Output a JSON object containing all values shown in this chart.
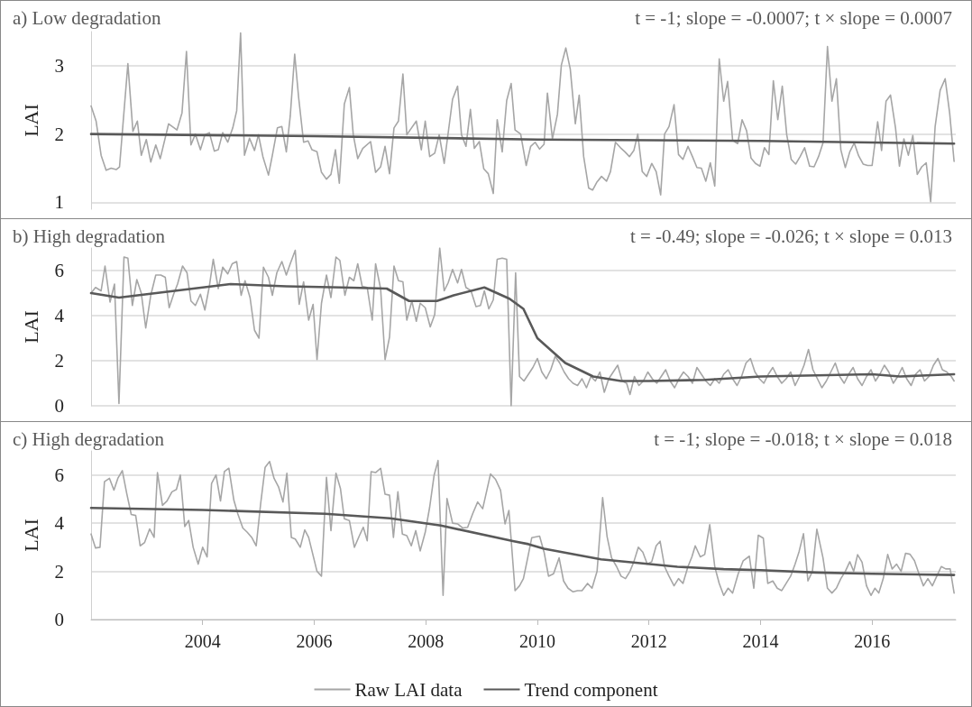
{
  "chart_data": [
    {
      "type": "line",
      "title": "a) Low degradation",
      "annotations": [
        "t = -1; slope = -0.0007; t × slope = 0.0007"
      ],
      "ylabel": "LAI",
      "xlim": [
        2002,
        2017.5
      ],
      "xticks": [
        2004,
        2006,
        2008,
        2010,
        2012,
        2014,
        2016
      ],
      "ylim": [
        0.9,
        3.5
      ],
      "yticks": [
        1,
        2,
        3
      ],
      "grid": "y",
      "legend": false,
      "tick_labels": "y",
      "marker": "none",
      "line_style": "solid",
      "series": [
        {
          "color": "#a6a6a6",
          "x": [
            2002.0,
            2002.09,
            2002.18,
            2002.27,
            2002.36,
            2002.45,
            2002.51,
            2002.66,
            2002.75,
            2002.83,
            2002.9,
            2002.99,
            2003.07,
            2003.16,
            2003.24,
            2003.39,
            2003.54,
            2003.63,
            2003.71,
            2003.79,
            2003.87,
            2003.96,
            2004.04,
            2004.12,
            2004.21,
            2004.28,
            2004.36,
            2004.45,
            2004.54,
            2004.61,
            2004.68,
            2004.75,
            2004.84,
            2004.93,
            2005.0,
            2005.08,
            2005.18,
            2005.25,
            2005.34,
            2005.42,
            2005.5,
            2005.57,
            2005.65,
            2005.72,
            2005.81,
            2005.89,
            2005.96,
            2006.05,
            2006.13,
            2006.22,
            2006.3,
            2006.38,
            2006.45,
            2006.54,
            2006.63,
            2006.7,
            2006.78,
            2006.87,
            2007.01,
            2007.1,
            2007.19,
            2007.27,
            2007.35,
            2007.43,
            2007.51,
            2007.59,
            2007.66,
            2007.83,
            2007.92,
            2007.99,
            2008.07,
            2008.16,
            2008.24,
            2008.33,
            2008.48,
            2008.57,
            2008.64,
            2008.72,
            2008.8,
            2008.87,
            2008.96,
            2009.04,
            2009.12,
            2009.21,
            2009.28,
            2009.37,
            2009.45,
            2009.53,
            2009.6,
            2009.7,
            2009.8,
            2009.88,
            2009.96,
            2010.04,
            2010.12,
            2010.18,
            2010.27,
            2010.36,
            2010.43,
            2010.51,
            2010.59,
            2010.68,
            2010.75,
            2010.83,
            2010.92,
            2010.99,
            2011.07,
            2011.15,
            2011.24,
            2011.31,
            2011.4,
            2011.49,
            2011.57,
            2011.65,
            2011.73,
            2011.8,
            2011.88,
            2011.96,
            2012.05,
            2012.13,
            2012.21,
            2012.28,
            2012.36,
            2012.45,
            2012.53,
            2012.61,
            2012.7,
            2012.78,
            2012.86,
            2012.94,
            2013.02,
            2013.1,
            2013.18,
            2013.26,
            2013.34,
            2013.41,
            2013.5,
            2013.59,
            2013.67,
            2013.75,
            2013.83,
            2013.91,
            2013.99,
            2014.07,
            2014.15,
            2014.23,
            2014.31,
            2014.39,
            2014.47,
            2014.55,
            2014.63,
            2014.71,
            2014.79,
            2014.88,
            2014.96,
            2015.04,
            2015.12,
            2015.2,
            2015.28,
            2015.36,
            2015.44,
            2015.52,
            2015.6,
            2015.68,
            2015.76,
            2015.84,
            2015.92,
            2016.0,
            2016.1,
            2016.17,
            2016.25,
            2016.33,
            2016.42,
            2016.49,
            2016.57,
            2016.65,
            2016.73,
            2016.81,
            2016.89,
            2016.97,
            2017.05,
            2017.13,
            2017.22,
            2017.31,
            2017.39,
            2017.47
          ],
          "values": [
            2.41,
            2.19,
            1.69,
            1.47,
            1.5,
            1.48,
            1.52,
            3.03,
            2.04,
            2.19,
            1.69,
            1.92,
            1.59,
            1.84,
            1.64,
            2.15,
            2.06,
            2.31,
            3.21,
            1.84,
            2.0,
            1.77,
            1.99,
            2.02,
            1.75,
            1.77,
            2.02,
            1.88,
            2.09,
            2.34,
            3.48,
            1.69,
            1.94,
            1.76,
            1.99,
            1.67,
            1.4,
            1.69,
            2.09,
            2.11,
            1.74,
            2.26,
            3.17,
            2.54,
            1.88,
            1.9,
            1.77,
            1.74,
            1.44,
            1.34,
            1.41,
            1.77,
            1.28,
            2.44,
            2.68,
            1.99,
            1.64,
            1.79,
            1.89,
            1.44,
            1.52,
            1.82,
            1.42,
            2.09,
            2.19,
            2.88,
            1.99,
            2.19,
            1.77,
            2.19,
            1.67,
            1.72,
            1.99,
            1.57,
            2.51,
            2.7,
            1.99,
            1.82,
            2.36,
            1.79,
            1.89,
            1.49,
            1.42,
            1.13,
            2.21,
            1.74,
            2.49,
            2.74,
            2.06,
            2.0,
            1.54,
            1.82,
            1.88,
            1.78,
            1.85,
            2.6,
            1.93,
            2.29,
            3.01,
            3.26,
            2.95,
            2.15,
            2.57,
            1.67,
            1.21,
            1.18,
            1.3,
            1.38,
            1.31,
            1.45,
            1.88,
            1.8,
            1.74,
            1.67,
            1.76,
            2.0,
            1.45,
            1.38,
            1.57,
            1.45,
            1.11,
            2.0,
            2.11,
            2.43,
            1.7,
            1.63,
            1.82,
            1.67,
            1.51,
            1.5,
            1.31,
            1.58,
            1.24,
            3.1,
            2.48,
            2.77,
            1.91,
            1.86,
            2.21,
            2.05,
            1.65,
            1.57,
            1.53,
            1.8,
            1.7,
            2.78,
            2.21,
            2.7,
            1.99,
            1.63,
            1.56,
            1.67,
            1.8,
            1.53,
            1.52,
            1.67,
            1.87,
            3.28,
            2.48,
            2.81,
            1.77,
            1.51,
            1.74,
            1.87,
            1.68,
            1.56,
            1.54,
            1.54,
            2.18,
            1.76,
            2.48,
            2.57,
            2.09,
            1.53,
            1.93,
            1.69,
            1.98,
            1.41,
            1.52,
            1.58,
            1.01,
            2.11,
            2.64,
            2.81,
            2.31,
            1.6
          ]
        },
        {
          "color": "#595959",
          "x": [
            2002,
            2006,
            2010,
            2014,
            2017.47
          ],
          "values": [
            2.0,
            1.97,
            1.92,
            1.9,
            1.86
          ]
        }
      ]
    },
    {
      "type": "line",
      "title": "b) High degradation",
      "annotations": [
        "t = -0.49; slope = -0.026; t × slope = 0.013"
      ],
      "ylabel": "LAI",
      "xlim": [
        2002,
        2017.5
      ],
      "xticks": [
        2004,
        2006,
        2008,
        2010,
        2012,
        2014,
        2016
      ],
      "ylim": [
        0,
        7
      ],
      "yticks": [
        0,
        2,
        4,
        6
      ],
      "grid": "y",
      "legend": false,
      "tick_labels": "y",
      "marker": "none",
      "line_style": "solid",
      "series": [
        {
          "color": "#a6a6a6",
          "x": [
            2002.0,
            2002.08,
            2002.18,
            2002.25,
            2002.34,
            2002.42,
            2002.5,
            2002.59,
            2002.66,
            2002.74,
            2002.82,
            2002.9,
            2002.98,
            2003.07,
            2003.16,
            2003.25,
            2003.33,
            2003.4,
            2003.48,
            2003.55,
            2003.64,
            2003.72,
            2003.79,
            2003.87,
            2003.96,
            2004.04,
            2004.12,
            2004.19,
            2004.28,
            2004.36,
            2004.45,
            2004.53,
            2004.61,
            2004.69,
            2004.76,
            2004.85,
            2004.93,
            2005.01,
            2005.09,
            2005.18,
            2005.25,
            2005.33,
            2005.42,
            2005.5,
            2005.57,
            2005.66,
            2005.73,
            2005.81,
            2005.9,
            2005.98,
            2006.05,
            2006.13,
            2006.22,
            2006.3,
            2006.39,
            2006.46,
            2006.55,
            2006.63,
            2006.71,
            2006.78,
            2006.86,
            2006.95,
            2007.04,
            2007.1,
            2007.19,
            2007.27,
            2007.35,
            2007.43,
            2007.51,
            2007.59,
            2007.66,
            2007.75,
            2007.83,
            2007.9,
            2007.99,
            2008.08,
            2008.16,
            2008.25,
            2008.33,
            2008.4,
            2008.48,
            2008.57,
            2008.64,
            2008.72,
            2008.81,
            2008.9,
            2008.98,
            2009.05,
            2009.13,
            2009.21,
            2009.28,
            2009.37,
            2009.45,
            2009.53,
            2009.61,
            2009.68,
            2009.76,
            2009.84,
            2009.92,
            2010.0,
            2010.08,
            2010.16,
            2010.24,
            2010.32,
            2010.4,
            2010.48,
            2010.56,
            2010.64,
            2010.72,
            2010.8,
            2010.88,
            2010.96,
            2011.04,
            2011.12,
            2011.2,
            2011.28,
            2011.36,
            2011.44,
            2011.52,
            2011.6,
            2011.66,
            2011.74,
            2011.82,
            2011.9,
            2011.98,
            2012.06,
            2012.14,
            2012.22,
            2012.3,
            2012.38,
            2012.46,
            2012.54,
            2012.62,
            2012.7,
            2012.78,
            2012.86,
            2012.94,
            2013.02,
            2013.1,
            2013.18,
            2013.26,
            2013.34,
            2013.42,
            2013.5,
            2013.58,
            2013.66,
            2013.74,
            2013.82,
            2013.9,
            2013.98,
            2014.06,
            2014.14,
            2014.22,
            2014.3,
            2014.38,
            2014.46,
            2014.54,
            2014.62,
            2014.7,
            2014.78,
            2014.86,
            2014.94,
            2015.02,
            2015.1,
            2015.18,
            2015.26,
            2015.34,
            2015.42,
            2015.5,
            2015.58,
            2015.66,
            2015.74,
            2015.82,
            2015.9,
            2015.98,
            2016.06,
            2016.14,
            2016.22,
            2016.3,
            2016.38,
            2016.46,
            2016.54,
            2016.62,
            2016.7,
            2016.78,
            2016.86,
            2016.94,
            2017.02,
            2017.1,
            2017.18,
            2017.26,
            2017.34,
            2017.42,
            2017.47
          ],
          "values": [
            5.0,
            5.25,
            5.1,
            6.2,
            4.6,
            5.4,
            0.1,
            6.6,
            6.55,
            4.45,
            5.6,
            5.0,
            3.45,
            4.9,
            5.8,
            5.8,
            5.7,
            4.35,
            4.95,
            5.4,
            6.2,
            5.9,
            4.65,
            4.45,
            4.95,
            4.25,
            5.3,
            6.5,
            5.2,
            6.15,
            5.85,
            6.3,
            6.4,
            4.9,
            5.55,
            4.8,
            3.35,
            3.0,
            6.15,
            5.7,
            4.9,
            5.9,
            6.4,
            5.8,
            6.3,
            6.9,
            4.5,
            5.5,
            3.8,
            4.5,
            2.05,
            4.55,
            5.8,
            4.8,
            6.6,
            6.45,
            4.9,
            5.7,
            5.55,
            6.3,
            5.3,
            5.25,
            3.8,
            6.3,
            5.2,
            2.05,
            3.05,
            6.2,
            5.55,
            5.5,
            3.8,
            4.65,
            3.75,
            4.55,
            4.35,
            3.5,
            4.05,
            7.0,
            5.1,
            5.45,
            6.05,
            5.45,
            6.05,
            5.25,
            5.1,
            4.4,
            4.45,
            5.1,
            4.3,
            4.7,
            6.5,
            6.55,
            6.5,
            0.0,
            5.9,
            1.3,
            1.1,
            1.4,
            1.7,
            2.1,
            1.5,
            1.2,
            1.6,
            2.2,
            1.9,
            1.5,
            1.2,
            1.0,
            0.9,
            1.2,
            0.8,
            1.3,
            1.1,
            1.5,
            0.6,
            1.2,
            1.5,
            1.8,
            1.1,
            1.0,
            0.5,
            1.3,
            0.9,
            1.1,
            1.5,
            1.2,
            1.0,
            1.3,
            1.6,
            1.1,
            0.8,
            1.2,
            1.5,
            1.3,
            1.0,
            1.7,
            1.4,
            1.1,
            0.9,
            1.2,
            1.0,
            1.4,
            1.6,
            1.2,
            0.9,
            1.3,
            1.9,
            2.1,
            1.5,
            1.2,
            1.0,
            1.4,
            1.7,
            1.3,
            1.0,
            1.2,
            1.5,
            0.9,
            1.3,
            1.8,
            2.5,
            1.6,
            1.2,
            0.8,
            1.1,
            1.5,
            1.9,
            1.3,
            1.0,
            1.4,
            1.7,
            1.2,
            0.9,
            1.3,
            1.6,
            1.1,
            1.4,
            1.8,
            1.5,
            1.0,
            1.3,
            1.7,
            1.2,
            0.9,
            1.4,
            1.6,
            1.1,
            1.3,
            1.8,
            2.1,
            1.6,
            1.5,
            1.3,
            1.1
          ]
        },
        {
          "color": "#595959",
          "x": [
            2002,
            2002.5,
            2003.5,
            2004.5,
            2005.5,
            2006.5,
            2007.3,
            2007.7,
            2008.2,
            2008.5,
            2009.05,
            2009.5,
            2009.75,
            2010.0,
            2010.5,
            2011.0,
            2011.5,
            2012.0,
            2013.0,
            2014.0,
            2015.0,
            2016.0,
            2016.5,
            2017.47
          ],
          "values": [
            5.0,
            4.8,
            5.1,
            5.4,
            5.3,
            5.25,
            5.2,
            4.65,
            4.65,
            4.9,
            5.25,
            4.75,
            4.3,
            3.0,
            1.9,
            1.3,
            1.1,
            1.1,
            1.15,
            1.3,
            1.35,
            1.4,
            1.3,
            1.4
          ]
        }
      ]
    },
    {
      "type": "line",
      "title": "c) High degradation",
      "annotations": [
        "t = -1; slope = -0.018; t × slope = 0.018"
      ],
      "ylabel": "LAI",
      "xlim": [
        2002,
        2017.5
      ],
      "xticks": [
        2004,
        2006,
        2008,
        2010,
        2012,
        2014,
        2016
      ],
      "ylim": [
        0,
        7
      ],
      "yticks": [
        0,
        2,
        4,
        6
      ],
      "grid": "y",
      "legend": "bottom",
      "marker": "none",
      "line_style": "solid",
      "series": [
        {
          "name": "Raw LAI data",
          "color": "#a6a6a6",
          "x": [
            2002.0,
            2002.08,
            2002.16,
            2002.24,
            2002.33,
            2002.41,
            2002.48,
            2002.56,
            2002.64,
            2002.72,
            2002.8,
            2002.88,
            2002.96,
            2003.05,
            2003.13,
            2003.19,
            2003.28,
            2003.36,
            2003.45,
            2003.53,
            2003.6,
            2003.68,
            2003.75,
            2003.83,
            2003.92,
            2004.0,
            2004.08,
            2004.16,
            2004.24,
            2004.32,
            2004.39,
            2004.47,
            2004.56,
            2004.63,
            2004.72,
            2004.8,
            2004.88,
            2004.96,
            2005.04,
            2005.12,
            2005.2,
            2005.28,
            2005.36,
            2005.44,
            2005.51,
            2005.59,
            2005.66,
            2005.75,
            2005.83,
            2005.9,
            2006.05,
            2006.13,
            2006.22,
            2006.3,
            2006.39,
            2006.47,
            2006.54,
            2006.63,
            2006.72,
            2006.81,
            2006.88,
            2006.95,
            2007.02,
            2007.1,
            2007.19,
            2007.27,
            2007.35,
            2007.42,
            2007.5,
            2007.58,
            2007.66,
            2007.74,
            2007.82,
            2007.9,
            2007.99,
            2008.07,
            2008.15,
            2008.22,
            2008.31,
            2008.38,
            2008.48,
            2008.57,
            2008.66,
            2008.75,
            2008.84,
            2008.93,
            2009.02,
            2009.16,
            2009.25,
            2009.34,
            2009.42,
            2009.49,
            2009.6,
            2009.68,
            2009.75,
            2009.83,
            2009.9,
            2010.04,
            2010.12,
            2010.2,
            2010.29,
            2010.39,
            2010.47,
            2010.55,
            2010.64,
            2010.72,
            2010.8,
            2010.9,
            2010.98,
            2011.07,
            2011.17,
            2011.25,
            2011.33,
            2011.42,
            2011.5,
            2011.58,
            2011.66,
            2011.73,
            2011.81,
            2011.89,
            2011.97,
            2012.05,
            2012.13,
            2012.2,
            2012.28,
            2012.36,
            2012.45,
            2012.53,
            2012.61,
            2012.7,
            2012.77,
            2012.83,
            2012.92,
            2013.0,
            2013.09,
            2013.18,
            2013.26,
            2013.34,
            2013.42,
            2013.5,
            2013.6,
            2013.69,
            2013.8,
            2013.88,
            2013.96,
            2014.05,
            2014.13,
            2014.22,
            2014.3,
            2014.38,
            2014.46,
            2014.54,
            2014.62,
            2014.69,
            2014.77,
            2014.85,
            2014.93,
            2015.01,
            2015.12,
            2015.2,
            2015.28,
            2015.36,
            2015.44,
            2015.52,
            2015.6,
            2015.67,
            2015.74,
            2015.82,
            2015.9,
            2015.98,
            2016.05,
            2016.12,
            2016.2,
            2016.28,
            2016.36,
            2016.44,
            2016.52,
            2016.6,
            2016.68,
            2016.76,
            2016.84,
            2016.92,
            2017.0,
            2017.08,
            2017.16,
            2017.24,
            2017.32,
            2017.4,
            2017.47
          ],
          "values": [
            3.55,
            2.97,
            3.0,
            5.72,
            5.86,
            5.37,
            5.86,
            6.18,
            5.23,
            4.36,
            4.32,
            3.06,
            3.2,
            3.76,
            3.41,
            6.1,
            4.74,
            4.92,
            5.3,
            5.4,
            6.0,
            3.86,
            4.11,
            3.0,
            2.3,
            3.0,
            2.6,
            5.65,
            6.0,
            4.92,
            6.14,
            6.28,
            4.95,
            4.39,
            3.8,
            3.62,
            3.41,
            3.06,
            4.81,
            6.32,
            6.56,
            5.86,
            5.51,
            4.88,
            6.07,
            3.41,
            3.34,
            3.0,
            3.72,
            3.41,
            2.0,
            1.8,
            5.9,
            3.69,
            6.07,
            5.44,
            4.18,
            4.11,
            3.0,
            3.48,
            3.83,
            3.27,
            6.14,
            6.1,
            6.28,
            5.2,
            5.16,
            3.41,
            5.3,
            3.55,
            3.48,
            3.06,
            3.69,
            2.85,
            3.62,
            4.67,
            6.0,
            6.6,
            1.0,
            5.02,
            4.0,
            3.97,
            3.8,
            3.83,
            4.39,
            4.88,
            4.6,
            6.04,
            5.82,
            5.37,
            3.97,
            4.53,
            1.2,
            1.4,
            1.7,
            2.6,
            3.4,
            3.46,
            2.8,
            1.8,
            1.9,
            2.56,
            1.6,
            1.3,
            1.15,
            1.2,
            1.2,
            1.5,
            1.3,
            2.0,
            5.06,
            3.44,
            2.56,
            2.2,
            1.8,
            1.7,
            2.0,
            2.4,
            3.0,
            2.8,
            2.3,
            2.4,
            3.06,
            3.25,
            2.2,
            1.8,
            1.4,
            1.7,
            1.5,
            2.2,
            2.6,
            3.06,
            2.6,
            2.7,
            3.94,
            2.19,
            1.5,
            1.0,
            1.3,
            1.1,
            1.9,
            2.44,
            2.63,
            1.3,
            3.5,
            3.38,
            1.5,
            1.6,
            1.3,
            1.2,
            1.5,
            1.8,
            2.3,
            2.81,
            3.56,
            1.6,
            2.0,
            3.75,
            2.56,
            1.3,
            1.1,
            1.3,
            1.7,
            2.0,
            2.4,
            2.0,
            2.69,
            2.38,
            1.4,
            1.0,
            1.3,
            1.1,
            1.7,
            2.7,
            2.1,
            2.3,
            2.0,
            2.75,
            2.71,
            2.44,
            1.9,
            1.4,
            1.7,
            1.4,
            1.8,
            2.2,
            2.1,
            2.1,
            1.1
          ]
        },
        {
          "name": "Trend component",
          "color": "#595959",
          "x": [
            2002,
            2004,
            2006.2,
            2007.36,
            2008.27,
            2009.58,
            2009.84,
            2010.12,
            2011.14,
            2012.51,
            2013.34,
            2014,
            2015,
            2016,
            2017.47
          ],
          "values": [
            4.63,
            4.55,
            4.39,
            4.2,
            3.9,
            3.25,
            3.13,
            2.94,
            2.5,
            2.19,
            2.09,
            2.05,
            1.95,
            1.9,
            1.85
          ]
        }
      ]
    }
  ]
}
